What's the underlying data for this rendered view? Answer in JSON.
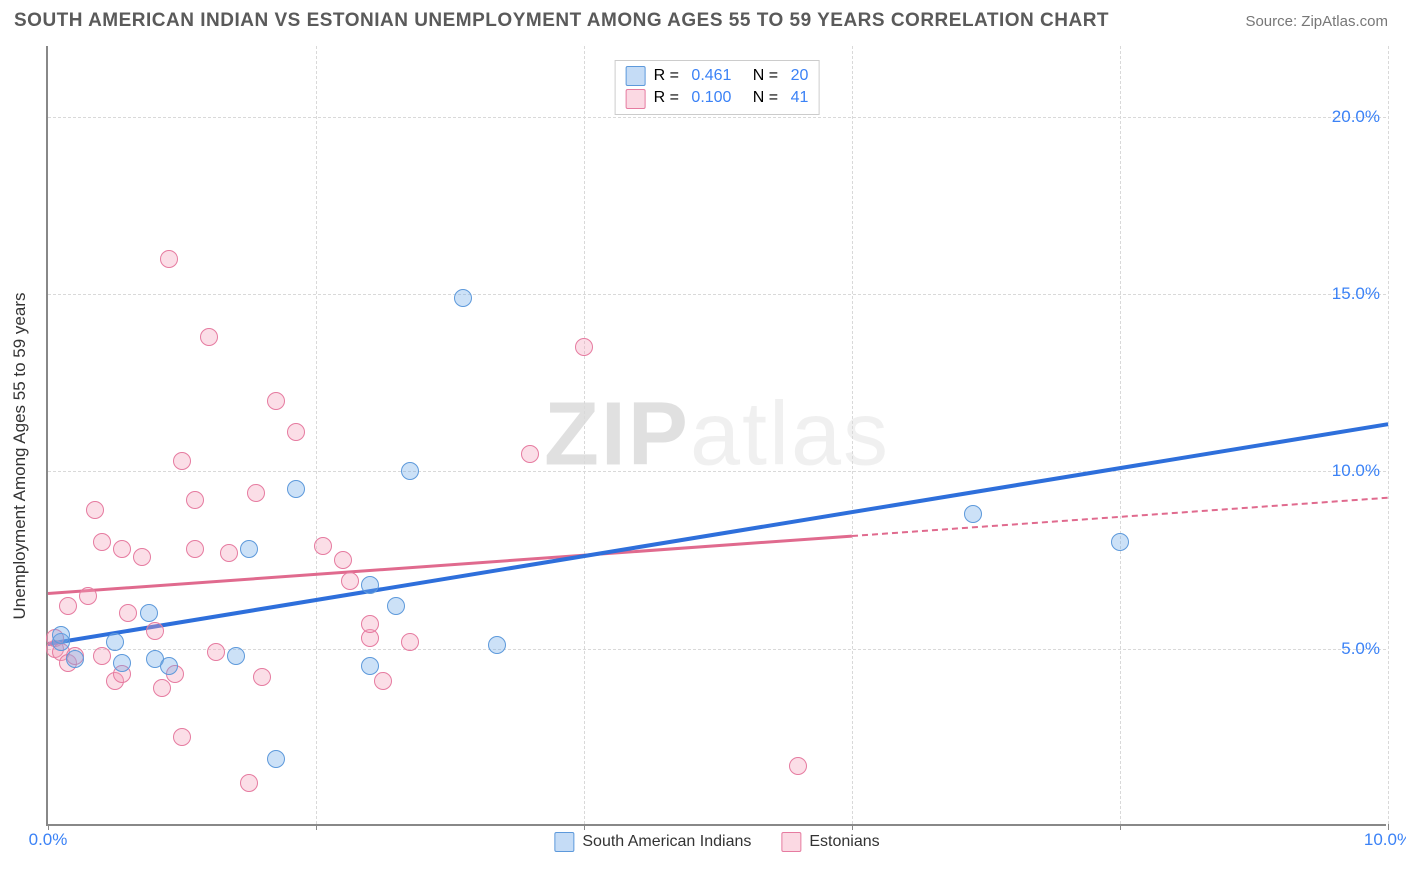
{
  "header": {
    "title": "SOUTH AMERICAN INDIAN VS ESTONIAN UNEMPLOYMENT AMONG AGES 55 TO 59 YEARS CORRELATION CHART",
    "source": "Source: ZipAtlas.com"
  },
  "chart": {
    "type": "scatter",
    "ylabel": "Unemployment Among Ages 55 to 59 years",
    "watermark_bold": "ZIP",
    "watermark_light": "atlas",
    "xlim": [
      0,
      10
    ],
    "ylim": [
      0,
      22
    ],
    "xtick_start": "0.0%",
    "xtick_end": "10.0%",
    "yticks": [
      {
        "v": 5,
        "label": "5.0%"
      },
      {
        "v": 10,
        "label": "10.0%"
      },
      {
        "v": 15,
        "label": "15.0%"
      },
      {
        "v": 20,
        "label": "20.0%"
      }
    ],
    "xgrid": [
      2,
      4,
      6,
      8,
      10
    ],
    "background_color": "#ffffff",
    "grid_color": "#d9d9d9",
    "axis_color": "#888888",
    "series": {
      "blue": {
        "name": "South American Indians",
        "marker_color": "#6ea8e9",
        "marker_border": "#5d99db",
        "line_color": "#2e6fdb",
        "r": "0.461",
        "n": "20",
        "trend": {
          "x1": 0,
          "y1": 5.2,
          "x2": 10,
          "y2": 11.4
        },
        "dash_from_x": 10,
        "points": [
          [
            0.1,
            5.2
          ],
          [
            0.1,
            5.4
          ],
          [
            0.2,
            4.7
          ],
          [
            0.5,
            5.2
          ],
          [
            0.55,
            4.6
          ],
          [
            0.8,
            4.7
          ],
          [
            0.75,
            6.0
          ],
          [
            0.9,
            4.5
          ],
          [
            1.4,
            4.8
          ],
          [
            1.5,
            7.8
          ],
          [
            1.7,
            1.9
          ],
          [
            1.85,
            9.5
          ],
          [
            2.4,
            4.5
          ],
          [
            2.4,
            6.8
          ],
          [
            2.6,
            6.2
          ],
          [
            2.7,
            10.0
          ],
          [
            3.1,
            14.9
          ],
          [
            3.35,
            5.1
          ],
          [
            6.9,
            8.8
          ],
          [
            8.0,
            8.0
          ]
        ]
      },
      "pink": {
        "name": "Estonians",
        "marker_color": "#f4a0b9",
        "marker_border": "#e67ba0",
        "line_color": "#e06a8e",
        "r": "0.100",
        "n": "41",
        "trend": {
          "x1": 0,
          "y1": 6.6,
          "x2": 10,
          "y2": 9.3
        },
        "dash_from_x": 6,
        "points": [
          [
            0.05,
            5.0
          ],
          [
            0.05,
            5.3
          ],
          [
            0.1,
            4.9
          ],
          [
            0.15,
            4.6
          ],
          [
            0.15,
            6.2
          ],
          [
            0.2,
            4.8
          ],
          [
            0.3,
            6.5
          ],
          [
            0.35,
            8.9
          ],
          [
            0.4,
            8.0
          ],
          [
            0.4,
            4.8
          ],
          [
            0.5,
            4.1
          ],
          [
            0.55,
            4.3
          ],
          [
            0.55,
            7.8
          ],
          [
            0.6,
            6.0
          ],
          [
            0.7,
            7.6
          ],
          [
            0.8,
            5.5
          ],
          [
            0.85,
            3.9
          ],
          [
            0.9,
            16.0
          ],
          [
            0.95,
            4.3
          ],
          [
            1.0,
            10.3
          ],
          [
            1.0,
            2.5
          ],
          [
            1.1,
            9.2
          ],
          [
            1.1,
            7.8
          ],
          [
            1.2,
            13.8
          ],
          [
            1.25,
            4.9
          ],
          [
            1.35,
            7.7
          ],
          [
            1.5,
            1.2
          ],
          [
            1.55,
            9.4
          ],
          [
            1.6,
            4.2
          ],
          [
            1.7,
            12.0
          ],
          [
            1.85,
            11.1
          ],
          [
            2.05,
            7.9
          ],
          [
            2.2,
            7.5
          ],
          [
            2.25,
            6.9
          ],
          [
            2.4,
            5.3
          ],
          [
            2.4,
            5.7
          ],
          [
            2.5,
            4.1
          ],
          [
            2.7,
            5.2
          ],
          [
            3.6,
            10.5
          ],
          [
            4.0,
            13.5
          ],
          [
            5.6,
            1.7
          ]
        ]
      }
    },
    "legend_bottom": [
      {
        "sw": "blue",
        "label": "South American Indians"
      },
      {
        "sw": "pink",
        "label": "Estonians"
      }
    ]
  }
}
